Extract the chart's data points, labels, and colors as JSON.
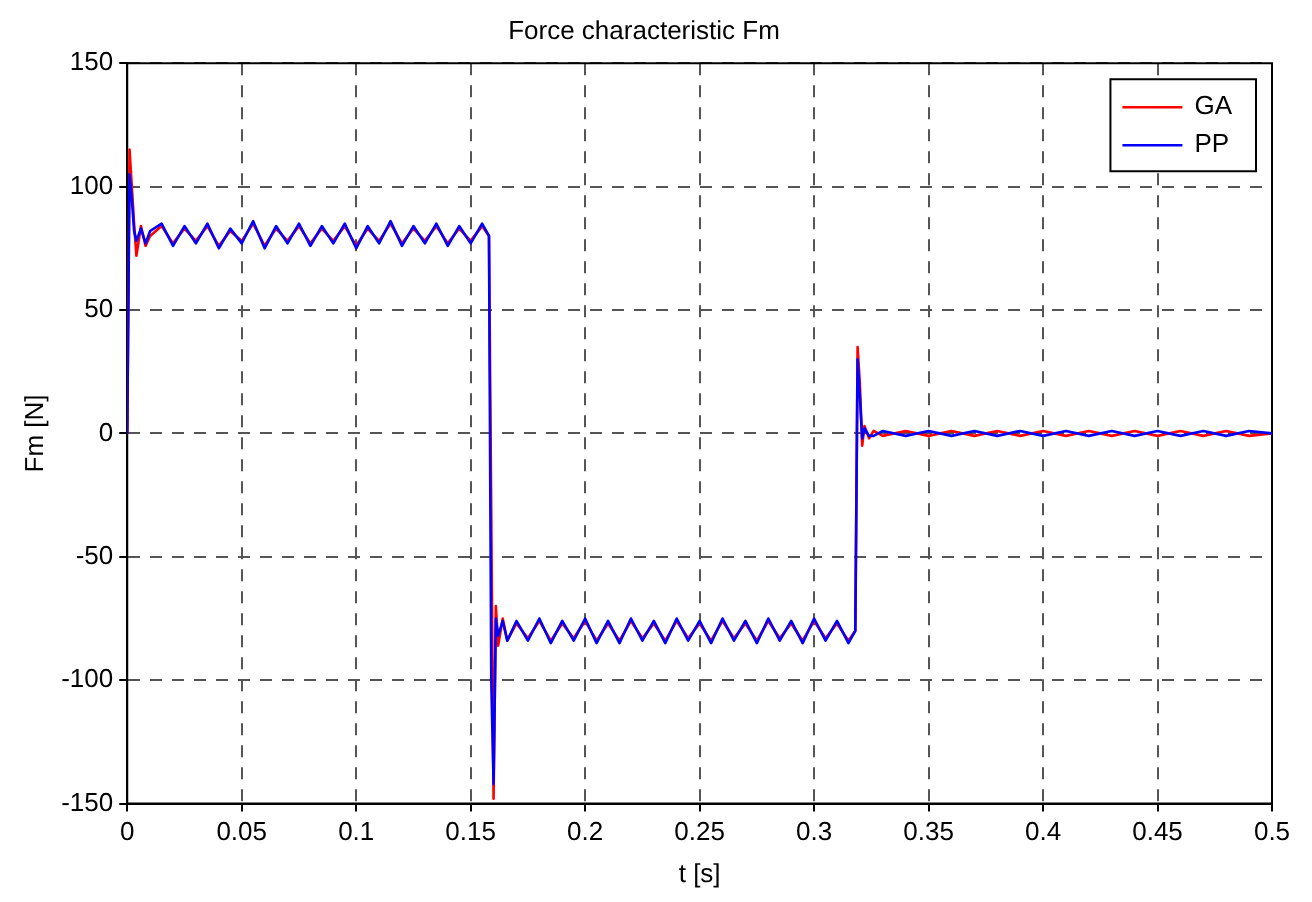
{
  "chart_data": {
    "type": "line",
    "title": "Force characteristic Fm",
    "xlabel": "t [s]",
    "ylabel": "Fm [N]",
    "x": [
      0,
      0.001,
      0.002,
      0.003,
      0.004,
      0.006,
      0.008,
      0.01,
      0.015,
      0.02,
      0.025,
      0.03,
      0.035,
      0.04,
      0.045,
      0.05,
      0.055,
      0.06,
      0.065,
      0.07,
      0.075,
      0.08,
      0.085,
      0.09,
      0.095,
      0.1,
      0.105,
      0.11,
      0.115,
      0.12,
      0.125,
      0.13,
      0.135,
      0.14,
      0.145,
      0.15,
      0.155,
      0.158,
      0.159,
      0.16,
      0.161,
      0.162,
      0.164,
      0.166,
      0.17,
      0.175,
      0.18,
      0.185,
      0.19,
      0.195,
      0.2,
      0.205,
      0.21,
      0.215,
      0.22,
      0.225,
      0.23,
      0.235,
      0.24,
      0.245,
      0.25,
      0.255,
      0.26,
      0.265,
      0.27,
      0.275,
      0.28,
      0.285,
      0.29,
      0.295,
      0.3,
      0.305,
      0.31,
      0.315,
      0.318,
      0.319,
      0.32,
      0.321,
      0.322,
      0.324,
      0.326,
      0.33,
      0.34,
      0.35,
      0.36,
      0.37,
      0.38,
      0.39,
      0.4,
      0.41,
      0.42,
      0.43,
      0.44,
      0.45,
      0.46,
      0.47,
      0.48,
      0.49,
      0.5
    ],
    "series": [
      {
        "name": "GA",
        "color": "#ff0000",
        "values": [
          0,
          115,
          100,
          85,
          72,
          84,
          76,
          80,
          84,
          77,
          83,
          78,
          84,
          76,
          82,
          78,
          85,
          76,
          83,
          78,
          84,
          77,
          83,
          78,
          84,
          76,
          83,
          78,
          85,
          77,
          83,
          78,
          84,
          77,
          83,
          78,
          84,
          80,
          null,
          -148,
          -70,
          -86,
          -75,
          -84,
          -77,
          -83,
          -76,
          -84,
          -77,
          -83,
          -76,
          -84,
          -77,
          -84,
          -76,
          -83,
          -77,
          -84,
          -76,
          -83,
          -77,
          -84,
          -76,
          -83,
          -77,
          -84,
          -76,
          -83,
          -77,
          -84,
          -76,
          -83,
          -77,
          -84,
          -80,
          35,
          20,
          -5,
          3,
          -2,
          1,
          -1,
          1,
          -1,
          1,
          -1,
          1,
          -1,
          1,
          -1,
          1,
          -1,
          1,
          -1,
          1,
          -1,
          1,
          -1,
          0
        ]
      },
      {
        "name": "PP",
        "color": "#0000ff",
        "values": [
          0,
          105,
          95,
          82,
          78,
          83,
          77,
          82,
          85,
          76,
          84,
          77,
          85,
          75,
          83,
          77,
          86,
          75,
          84,
          77,
          85,
          76,
          84,
          77,
          85,
          75,
          84,
          77,
          86,
          76,
          84,
          77,
          85,
          76,
          84,
          77,
          85,
          80,
          -100,
          -142,
          -75,
          -82,
          -76,
          -84,
          -76,
          -84,
          -75,
          -85,
          -76,
          -84,
          -75,
          -85,
          -76,
          -85,
          -75,
          -84,
          -76,
          -85,
          -75,
          -84,
          -76,
          -85,
          -75,
          -84,
          -76,
          -85,
          -75,
          -84,
          -76,
          -85,
          -75,
          -84,
          -76,
          -85,
          -80,
          30,
          15,
          -2,
          2,
          -1,
          -1,
          1,
          -1,
          1,
          -1,
          1,
          -1,
          1,
          -1,
          1,
          -1,
          1,
          -1,
          1,
          -1,
          1,
          -1,
          1,
          0
        ]
      }
    ],
    "xlim": [
      0,
      0.5
    ],
    "xticks": [
      0,
      0.05,
      0.1,
      0.15,
      0.2,
      0.25,
      0.3,
      0.35,
      0.4,
      0.45,
      0.5
    ],
    "ylim": [
      -150,
      150
    ],
    "yticks": [
      -150,
      -100,
      -50,
      0,
      50,
      100,
      150
    ],
    "grid": true,
    "legend": "top right",
    "marker": "none",
    "line_style": "solid"
  }
}
